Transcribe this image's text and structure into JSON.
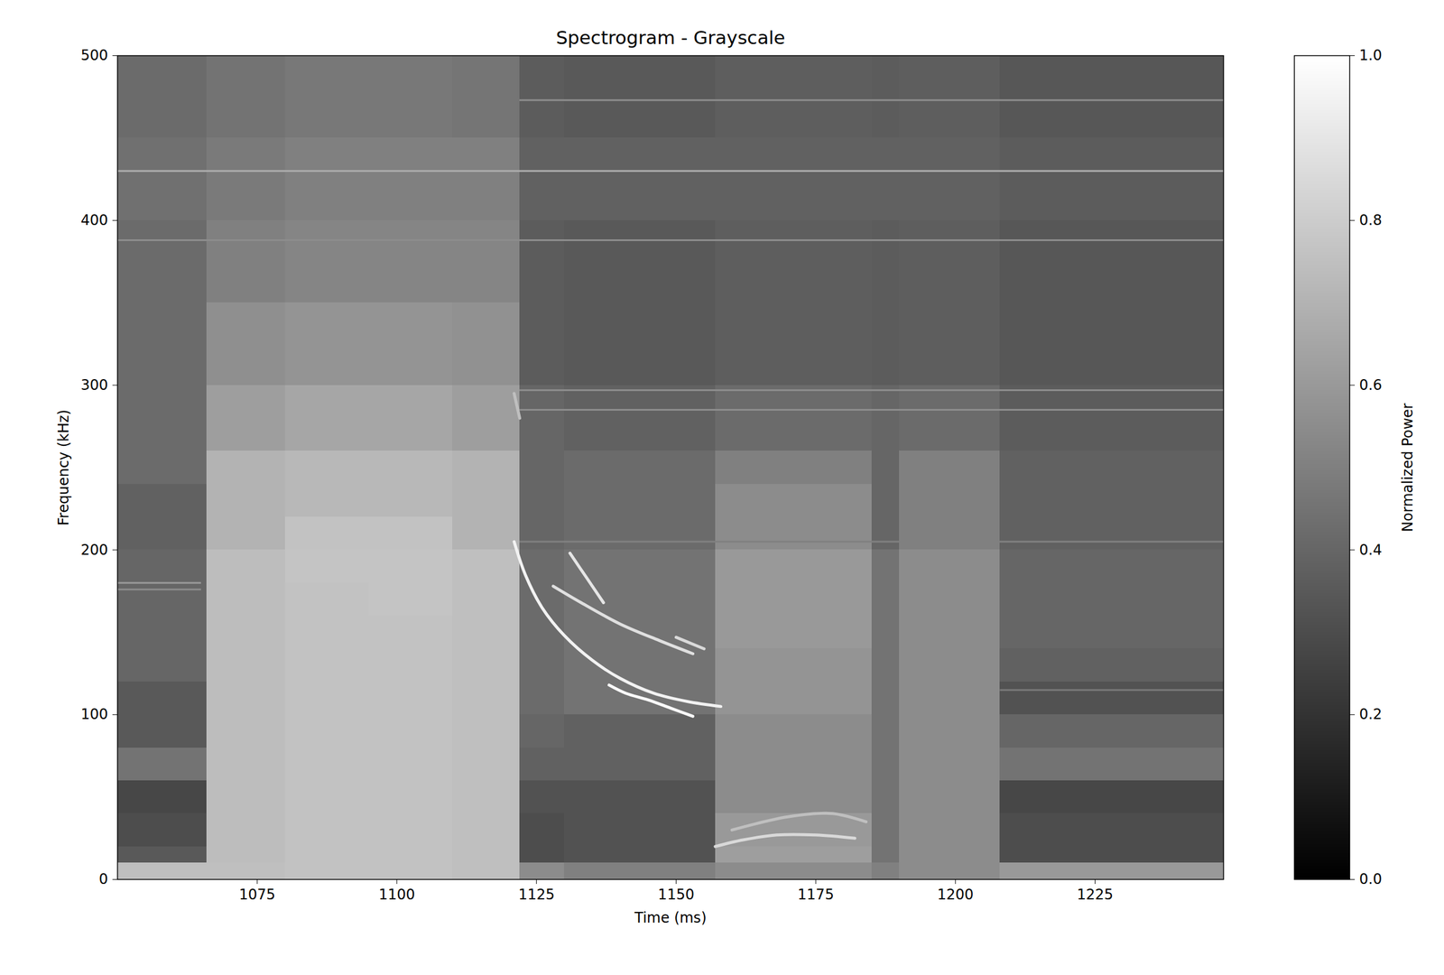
{
  "chart_data": {
    "type": "heatmap",
    "title": "Spectrogram - Grayscale",
    "x_label": "Time (ms)",
    "y_label": "Frequency (kHz)",
    "xlim": [
      1050,
      1248
    ],
    "ylim": [
      0,
      500
    ],
    "xticks": [
      1075,
      1100,
      1125,
      1150,
      1175,
      1200,
      1225
    ],
    "yticks": [
      0,
      100,
      200,
      300,
      400,
      500
    ],
    "colorbar_label": "Normalized Power",
    "color_range": [
      0,
      1
    ],
    "color_ticks": [
      {
        "value": 0,
        "label": "0.0"
      },
      {
        "value": 0.2,
        "label": "0.2"
      },
      {
        "value": 0.4,
        "label": "0.4"
      },
      {
        "value": 0.6,
        "label": "0.6"
      },
      {
        "value": 0.8,
        "label": "0.8"
      },
      {
        "value": 1,
        "label": "1.0"
      }
    ],
    "time_edges": [
      1050,
      1058,
      1066,
      1080,
      1095,
      1110,
      1122,
      1130,
      1140,
      1150,
      1157,
      1165,
      1175,
      1185,
      1190,
      1200,
      1208,
      1220,
      1235,
      1248
    ],
    "freq_edges": [
      0,
      10,
      20,
      40,
      60,
      80,
      100,
      120,
      140,
      160,
      180,
      200,
      220,
      240,
      260,
      280,
      300,
      350,
      400,
      450,
      500
    ],
    "power": [
      [
        0.75,
        0.35,
        0.3,
        0.28,
        0.45,
        0.35,
        0.35,
        0.4,
        0.4,
        0.4,
        0.4,
        0.38,
        0.38,
        0.42,
        0.42,
        0.42,
        0.42,
        0.42,
        0.44,
        0.42
      ],
      [
        0.75,
        0.35,
        0.3,
        0.28,
        0.45,
        0.35,
        0.35,
        0.4,
        0.4,
        0.4,
        0.4,
        0.38,
        0.38,
        0.42,
        0.42,
        0.42,
        0.42,
        0.42,
        0.44,
        0.42
      ],
      [
        0.75,
        0.74,
        0.74,
        0.74,
        0.74,
        0.74,
        0.74,
        0.74,
        0.74,
        0.74,
        0.74,
        0.7,
        0.7,
        0.7,
        0.62,
        0.62,
        0.56,
        0.5,
        0.48,
        0.45
      ],
      [
        0.76,
        0.76,
        0.76,
        0.76,
        0.76,
        0.76,
        0.76,
        0.76,
        0.76,
        0.76,
        0.77,
        0.76,
        0.72,
        0.72,
        0.65,
        0.65,
        0.58,
        0.52,
        0.5,
        0.47
      ],
      [
        0.76,
        0.76,
        0.76,
        0.76,
        0.76,
        0.76,
        0.76,
        0.76,
        0.76,
        0.77,
        0.77,
        0.76,
        0.72,
        0.72,
        0.65,
        0.65,
        0.58,
        0.52,
        0.5,
        0.47
      ],
      [
        0.75,
        0.75,
        0.75,
        0.75,
        0.75,
        0.75,
        0.75,
        0.75,
        0.75,
        0.75,
        0.75,
        0.7,
        0.7,
        0.7,
        0.62,
        0.62,
        0.57,
        0.52,
        0.5,
        0.46
      ],
      [
        0.55,
        0.3,
        0.3,
        0.32,
        0.38,
        0.4,
        0.42,
        0.42,
        0.42,
        0.42,
        0.42,
        0.4,
        0.4,
        0.4,
        0.4,
        0.4,
        0.36,
        0.36,
        0.38,
        0.36
      ],
      [
        0.5,
        0.32,
        0.32,
        0.32,
        0.38,
        0.38,
        0.45,
        0.45,
        0.45,
        0.45,
        0.45,
        0.42,
        0.42,
        0.42,
        0.38,
        0.38,
        0.35,
        0.35,
        0.38,
        0.35
      ],
      [
        0.5,
        0.32,
        0.32,
        0.32,
        0.38,
        0.38,
        0.45,
        0.45,
        0.45,
        0.45,
        0.45,
        0.42,
        0.42,
        0.42,
        0.38,
        0.38,
        0.35,
        0.35,
        0.38,
        0.35
      ],
      [
        0.5,
        0.32,
        0.32,
        0.32,
        0.38,
        0.38,
        0.45,
        0.45,
        0.45,
        0.45,
        0.45,
        0.42,
        0.42,
        0.42,
        0.38,
        0.38,
        0.35,
        0.35,
        0.38,
        0.35
      ],
      [
        0.55,
        0.62,
        0.6,
        0.55,
        0.55,
        0.55,
        0.58,
        0.58,
        0.6,
        0.6,
        0.6,
        0.55,
        0.55,
        0.5,
        0.42,
        0.42,
        0.37,
        0.37,
        0.38,
        0.37
      ],
      [
        0.55,
        0.62,
        0.6,
        0.55,
        0.55,
        0.55,
        0.58,
        0.58,
        0.6,
        0.6,
        0.6,
        0.55,
        0.55,
        0.5,
        0.42,
        0.42,
        0.37,
        0.37,
        0.38,
        0.37
      ],
      [
        0.55,
        0.62,
        0.6,
        0.55,
        0.55,
        0.55,
        0.58,
        0.58,
        0.6,
        0.6,
        0.6,
        0.55,
        0.55,
        0.5,
        0.42,
        0.42,
        0.37,
        0.37,
        0.38,
        0.37
      ],
      [
        0.5,
        0.45,
        0.45,
        0.45,
        0.45,
        0.45,
        0.45,
        0.45,
        0.45,
        0.45,
        0.45,
        0.4,
        0.4,
        0.4,
        0.4,
        0.4,
        0.36,
        0.36,
        0.38,
        0.36
      ],
      [
        0.55,
        0.55,
        0.55,
        0.55,
        0.55,
        0.55,
        0.55,
        0.55,
        0.55,
        0.55,
        0.55,
        0.5,
        0.5,
        0.5,
        0.42,
        0.42,
        0.37,
        0.37,
        0.38,
        0.37
      ],
      [
        0.55,
        0.55,
        0.55,
        0.55,
        0.55,
        0.55,
        0.55,
        0.55,
        0.55,
        0.55,
        0.55,
        0.5,
        0.5,
        0.5,
        0.42,
        0.42,
        0.37,
        0.37,
        0.38,
        0.37
      ],
      [
        0.6,
        0.3,
        0.3,
        0.28,
        0.45,
        0.4,
        0.32,
        0.38,
        0.4,
        0.4,
        0.4,
        0.38,
        0.38,
        0.38,
        0.36,
        0.36,
        0.34,
        0.34,
        0.36,
        0.34
      ],
      [
        0.6,
        0.3,
        0.3,
        0.28,
        0.45,
        0.4,
        0.32,
        0.38,
        0.4,
        0.4,
        0.4,
        0.38,
        0.38,
        0.38,
        0.36,
        0.36,
        0.34,
        0.34,
        0.36,
        0.34
      ],
      [
        0.6,
        0.3,
        0.3,
        0.28,
        0.45,
        0.4,
        0.32,
        0.38,
        0.4,
        0.4,
        0.4,
        0.38,
        0.38,
        0.38,
        0.36,
        0.36,
        0.34,
        0.34,
        0.36,
        0.34
      ]
    ],
    "tones": [
      {
        "freq": 430,
        "start": 1050,
        "end": 1248,
        "power": 0.68
      },
      {
        "freq": 473,
        "start": 1122,
        "end": 1248,
        "power": 0.55
      },
      {
        "freq": 388,
        "start": 1050,
        "end": 1248,
        "power": 0.55
      },
      {
        "freq": 297,
        "start": 1122,
        "end": 1248,
        "power": 0.55
      },
      {
        "freq": 285,
        "start": 1122,
        "end": 1248,
        "power": 0.55
      },
      {
        "freq": 205,
        "start": 1122,
        "end": 1248,
        "power": 0.5
      },
      {
        "freq": 180,
        "start": 1050,
        "end": 1065,
        "power": 0.6
      },
      {
        "freq": 176,
        "start": 1050,
        "end": 1065,
        "power": 0.55
      },
      {
        "freq": 115,
        "start": 1208,
        "end": 1248,
        "power": 0.48
      }
    ],
    "curves": [
      {
        "power": 0.95,
        "points": [
          [
            1121,
            205
          ],
          [
            1123,
            185
          ],
          [
            1126,
            165
          ],
          [
            1130,
            148
          ],
          [
            1135,
            133
          ],
          [
            1140,
            122
          ],
          [
            1146,
            113
          ],
          [
            1152,
            108
          ],
          [
            1158,
            105
          ]
        ]
      },
      {
        "power": 0.98,
        "points": [
          [
            1138,
            118
          ],
          [
            1141,
            113
          ],
          [
            1145,
            109
          ],
          [
            1149,
            104
          ],
          [
            1153,
            99
          ]
        ]
      },
      {
        "power": 0.9,
        "points": [
          [
            1131,
            198
          ],
          [
            1134,
            183
          ],
          [
            1137,
            168
          ]
        ]
      },
      {
        "power": 0.88,
        "points": [
          [
            1128,
            178
          ],
          [
            1133,
            168
          ],
          [
            1140,
            155
          ],
          [
            1147,
            145
          ],
          [
            1153,
            137
          ]
        ]
      },
      {
        "power": 0.85,
        "points": [
          [
            1150,
            147
          ],
          [
            1155,
            140
          ]
        ]
      },
      {
        "power": 0.85,
        "points": [
          [
            1157,
            20
          ],
          [
            1162,
            24
          ],
          [
            1168,
            27
          ],
          [
            1175,
            27
          ],
          [
            1182,
            25
          ]
        ]
      },
      {
        "power": 0.75,
        "points": [
          [
            1160,
            30
          ],
          [
            1170,
            38
          ],
          [
            1178,
            40
          ],
          [
            1184,
            35
          ]
        ]
      },
      {
        "power": 0.75,
        "points": [
          [
            1121,
            295
          ],
          [
            1122,
            280
          ]
        ]
      }
    ]
  }
}
